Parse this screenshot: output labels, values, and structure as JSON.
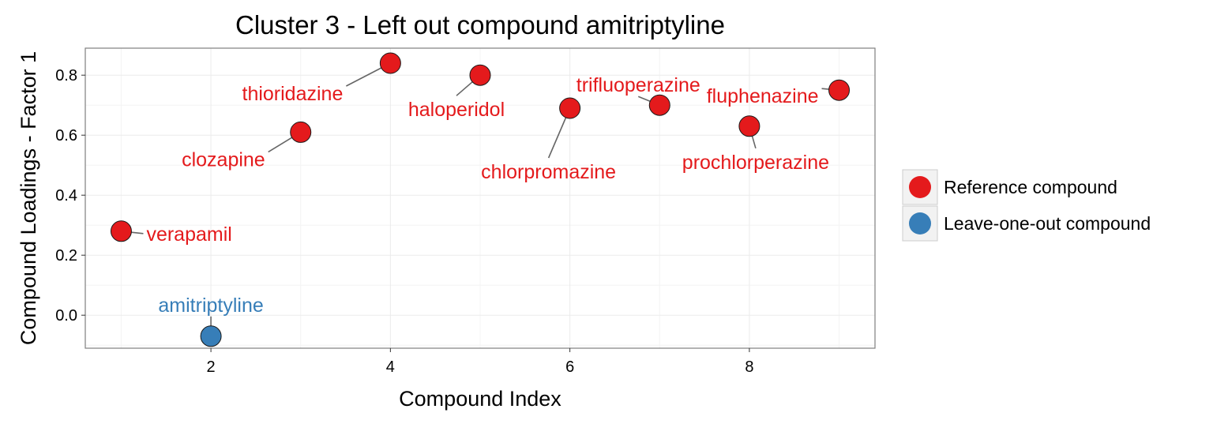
{
  "chart_data": {
    "type": "scatter",
    "title": "Cluster 3 - Left out compound amitriptyline",
    "xlabel": "Compound Index",
    "ylabel": "Compound Loadings - Factor 1",
    "xlim": [
      0.6,
      9.4
    ],
    "ylim": [
      -0.11,
      0.89
    ],
    "x_ticks": [
      2,
      4,
      6,
      8
    ],
    "x_tick_labels": [
      "2",
      "4",
      "6",
      "8"
    ],
    "y_ticks": [
      0.0,
      0.2,
      0.4,
      0.6,
      0.8
    ],
    "y_tick_labels": [
      "0.0",
      "0.2",
      "0.4",
      "0.6",
      "0.8"
    ],
    "grid": true,
    "legend_position": "right",
    "series": [
      {
        "name": "Reference compound",
        "color": "#e41a1c",
        "points": [
          {
            "x": 1,
            "y": 0.28,
            "label": "verapamil"
          },
          {
            "x": 3,
            "y": 0.61,
            "label": "clozapine"
          },
          {
            "x": 4,
            "y": 0.84,
            "label": "thioridazine"
          },
          {
            "x": 5,
            "y": 0.8,
            "label": "haloperidol"
          },
          {
            "x": 6,
            "y": 0.69,
            "label": "chlorpromazine"
          },
          {
            "x": 7,
            "y": 0.7,
            "label": "trifluoperazine"
          },
          {
            "x": 8,
            "y": 0.63,
            "label": "prochlorperazine"
          },
          {
            "x": 9,
            "y": 0.75,
            "label": "fluphenazine"
          }
        ]
      },
      {
        "name": "Leave-one-out compound",
        "color": "#377eb8",
        "points": [
          {
            "x": 2,
            "y": -0.07,
            "label": "amitriptyline"
          }
        ]
      }
    ]
  }
}
